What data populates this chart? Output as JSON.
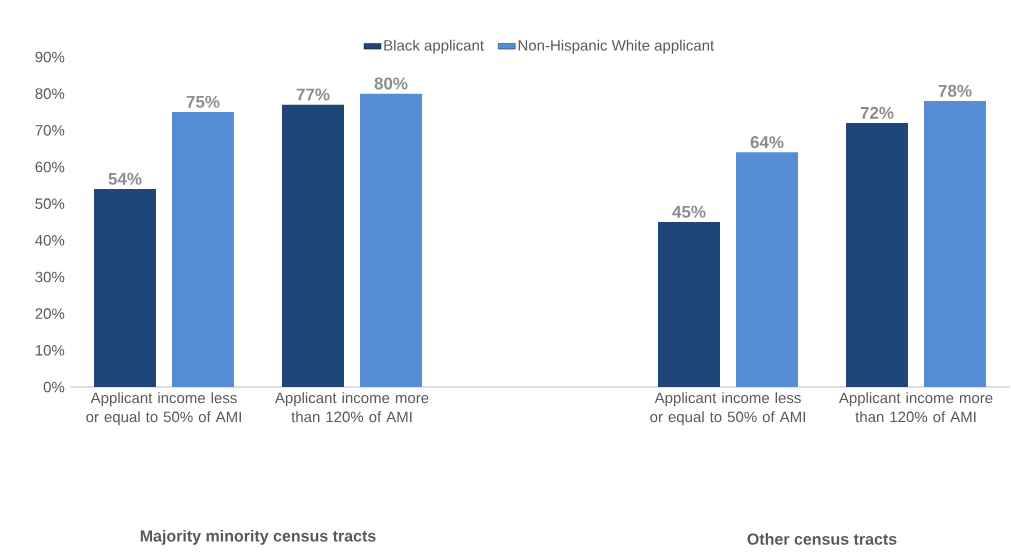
{
  "chart_data": {
    "type": "bar",
    "legend": "top",
    "categories": [
      "Applicant income less or equal to 50% of AMI",
      "Applicant income more than 120% of AMI",
      null,
      "Applicant income less or equal to 50% of AMI",
      "Applicant income more than 120% of AMI"
    ],
    "series": [
      {
        "name": "Black applicant",
        "color": "#1f4678",
        "values": [
          54,
          77,
          null,
          45,
          72
        ],
        "value_labels": [
          "54%",
          "77%",
          null,
          "45%",
          "72%"
        ]
      },
      {
        "name": "Non-Hispanic White applicant",
        "color": "#558ed5",
        "values": [
          75,
          80,
          null,
          64,
          78
        ],
        "value_labels": [
          "75%",
          "80%",
          null,
          "64%",
          "78%"
        ]
      }
    ],
    "ylim": [
      0,
      90
    ],
    "yticks": [
      {
        "value": 0,
        "label": "0%"
      },
      {
        "value": 10,
        "label": "10%"
      },
      {
        "value": 20,
        "label": "20%"
      },
      {
        "value": 30,
        "label": "30%"
      },
      {
        "value": 40,
        "label": "40%"
      },
      {
        "value": 50,
        "label": "50%"
      },
      {
        "value": 60,
        "label": "60%"
      },
      {
        "value": 70,
        "label": "70%"
      },
      {
        "value": 80,
        "label": "80%"
      },
      {
        "value": 90,
        "label": "90%"
      }
    ],
    "annotations": [
      "Majority minority census tracts",
      "Other census tracts"
    ]
  }
}
